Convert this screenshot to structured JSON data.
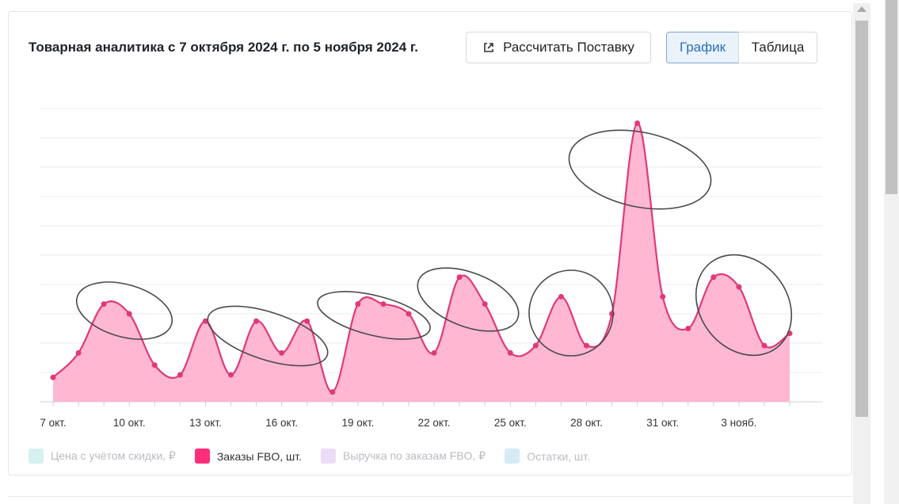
{
  "header": {
    "title": "Товарная аналитика с 7 октября 2024 г. по 5 ноября 2024 г.",
    "calc_button": "Рассчитать Поставку",
    "view_toggle": {
      "graph": "График",
      "table": "Таблица",
      "selected": "График"
    }
  },
  "legend": [
    {
      "label": "Цена с учётом скидки, ₽",
      "color": "#d6f1ef",
      "active": false
    },
    {
      "label": "Заказы FBO, шт.",
      "color": "#ff2e7a",
      "active": true
    },
    {
      "label": "Выручка по заказам FBO, ₽",
      "color": "#eddcf6",
      "active": false
    },
    {
      "label": "Остатки, шт.",
      "color": "#d5ebf5",
      "active": false
    }
  ],
  "chart_data": {
    "type": "area",
    "series": [
      {
        "name": "Заказы FBO, шт.",
        "color": "#e0397a",
        "fill": "#ffb3d0",
        "values": [
          1.0,
          2.0,
          4.0,
          3.6,
          1.5,
          1.1,
          3.3,
          1.1,
          3.3,
          2.0,
          3.3,
          0.4,
          4.0,
          4.0,
          3.6,
          2.0,
          5.1,
          4.0,
          2.0,
          2.3,
          4.3,
          2.3,
          3.6,
          11.4,
          4.3,
          3.0,
          5.1,
          4.7,
          2.3,
          2.8
        ]
      }
    ],
    "x_tick_labels": [
      "7 окт.",
      "10 окт.",
      "13 окт.",
      "16 окт.",
      "19 окт.",
      "22 окт.",
      "25 окт.",
      "28 окт.",
      "31 окт.",
      "3 нояб."
    ],
    "ylim": [
      0,
      12
    ],
    "y_gridlines": 11,
    "grid": true,
    "annotations": {
      "type": "hand-drawn ellipses",
      "count": 7
    }
  }
}
